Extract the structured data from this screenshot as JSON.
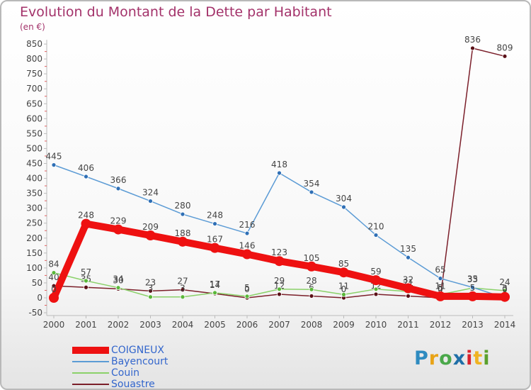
{
  "header": {
    "title": "Evolution du Montant de la Dette par Habitant",
    "unit": "(en €)"
  },
  "logo": {
    "text": "Proxiti",
    "letters": [
      "P",
      "r",
      "o",
      "x",
      "i",
      "t",
      "i"
    ],
    "colors": [
      "#2e8bc0",
      "#e8a317",
      "#4aa84a",
      "#1f6fa8",
      "#d9232d",
      "#f0b323",
      "#5aa02c"
    ]
  },
  "chart_data": {
    "type": "line",
    "title": "Evolution du Montant de la Dette par Habitant",
    "ylabel": "(en €)",
    "xlabel": "",
    "x": [
      2000,
      2001,
      2002,
      2003,
      2004,
      2005,
      2006,
      2007,
      2008,
      2009,
      2010,
      2011,
      2012,
      2013,
      2014
    ],
    "ylim": [
      -50,
      850
    ],
    "yticks": [
      -50,
      0,
      50,
      100,
      150,
      200,
      250,
      300,
      350,
      400,
      450,
      500,
      550,
      600,
      650,
      700,
      750,
      800,
      850
    ],
    "grid": false,
    "legend": "bottom-left",
    "series": [
      {
        "name": "Souastre",
        "color": "#7b1f2a",
        "line_width": 1.5,
        "marker_color": "#5a1017",
        "marker_radius": 3,
        "values": [
          40,
          35,
          30,
          23,
          27,
          14,
          0,
          12,
          6,
          0,
          12,
          6,
          0,
          836,
          809
        ],
        "labels": [
          "40",
          "35",
          "30",
          "23",
          "27",
          "14",
          "0",
          "12",
          "6",
          "0",
          "12",
          "6",
          "0",
          "836",
          "809"
        ]
      },
      {
        "name": "Couin",
        "color": "#8bd16a",
        "line_width": 1.5,
        "marker_color": "#5ab83a",
        "marker_radius": 3,
        "values": [
          84,
          57,
          34,
          3,
          3,
          17,
          5,
          29,
          28,
          11,
          29,
          21,
          11,
          33,
          24
        ],
        "labels": [
          "84",
          "57",
          "34",
          "3",
          "3",
          "17",
          "5",
          "29",
          "28",
          "11",
          "29",
          "21",
          "11",
          "33",
          "24"
        ]
      },
      {
        "name": "Bayencourt",
        "color": "#5b9bd5",
        "line_width": 1.5,
        "marker_color": "#2f6fb5",
        "marker_radius": 3,
        "values": [
          445,
          406,
          366,
          324,
          280,
          248,
          216,
          418,
          354,
          304,
          210,
          135,
          65,
          35,
          0
        ],
        "labels": [
          "445",
          "406",
          "366",
          "324",
          "280",
          "248",
          "216",
          "418",
          "354",
          "304",
          "210",
          "135",
          "65",
          "35",
          "0"
        ]
      },
      {
        "name": "COIGNEUX",
        "color": "#ee1111",
        "line_width": 10,
        "marker_color": "#ee1111",
        "marker_radius": 7,
        "values": [
          0,
          248,
          229,
          209,
          188,
          167,
          146,
          123,
          105,
          85,
          59,
          32,
          5,
          5,
          3
        ],
        "labels": [
          "0",
          "248",
          "229",
          "209",
          "188",
          "167",
          "146",
          "123",
          "105",
          "85",
          "59",
          "32",
          "5",
          "5",
          "3"
        ]
      }
    ]
  },
  "legend_items": [
    {
      "label": "COIGNEUX",
      "color": "#ee1111",
      "thickness": 10
    },
    {
      "label": "Bayencourt",
      "color": "#5b9bd5",
      "thickness": 2
    },
    {
      "label": "Couin",
      "color": "#8bd16a",
      "thickness": 2
    },
    {
      "label": "Souastre",
      "color": "#7b1f2a",
      "thickness": 2
    }
  ]
}
